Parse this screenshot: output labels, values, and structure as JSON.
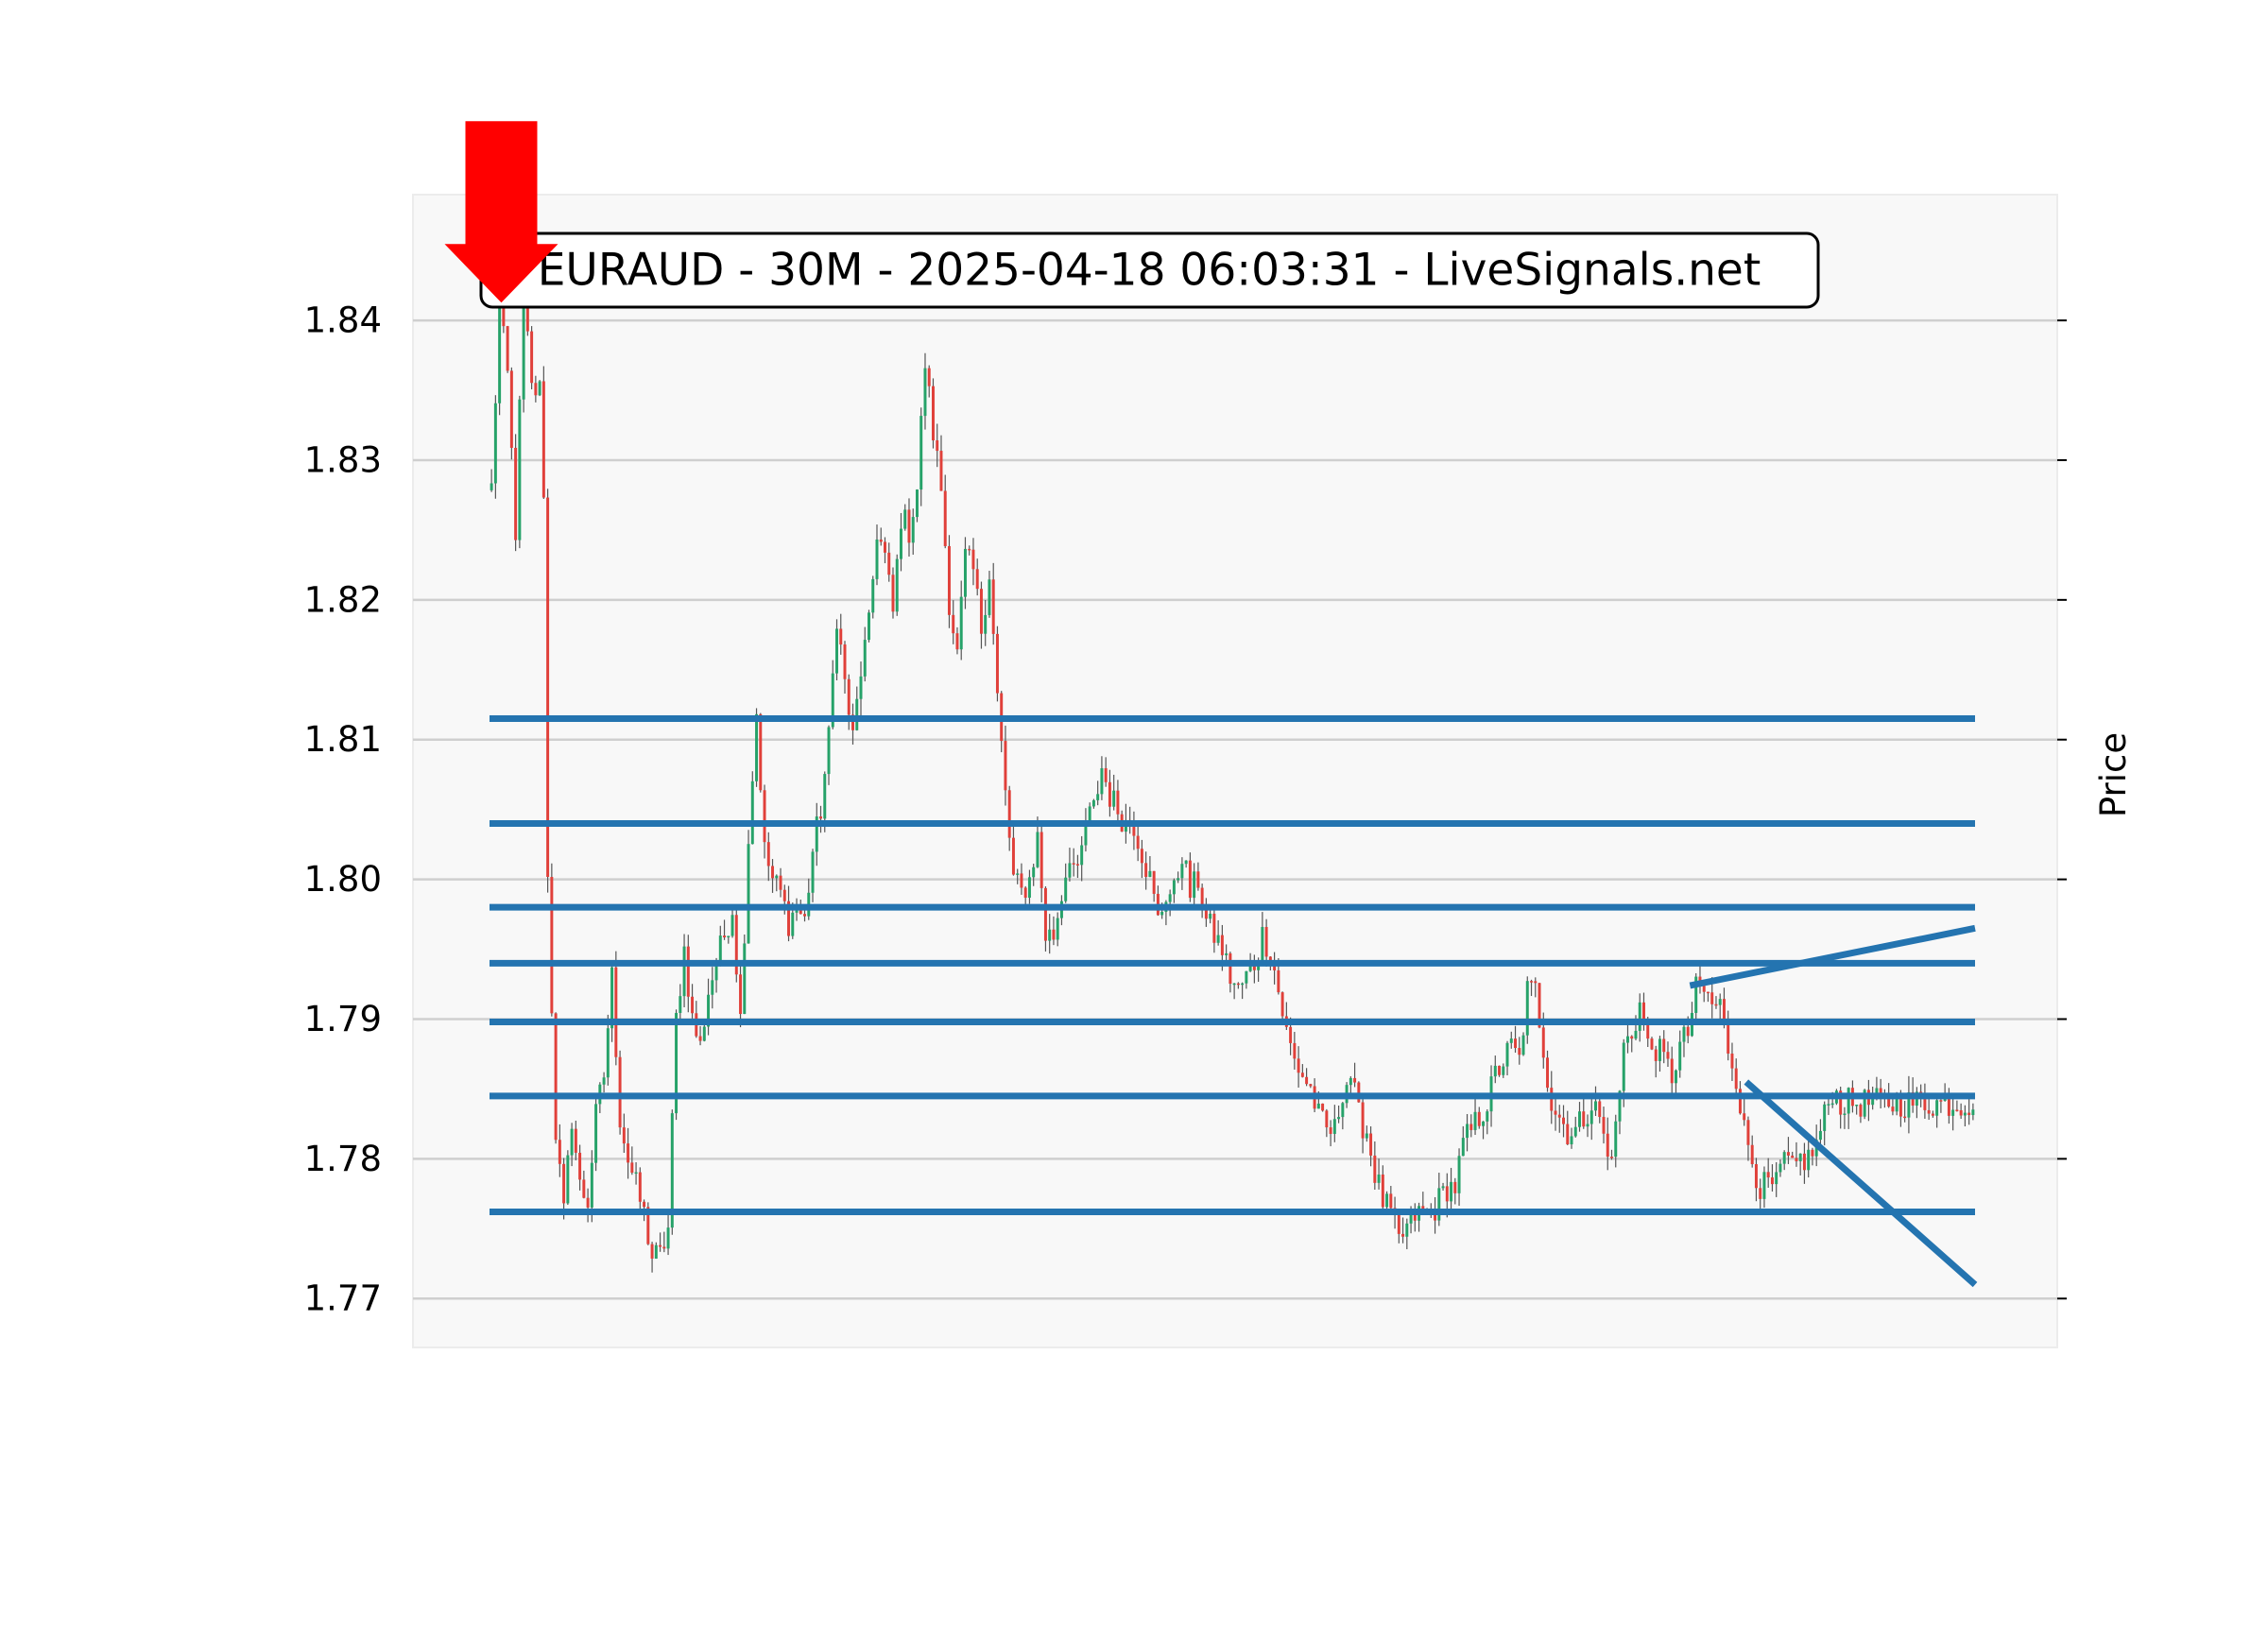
{
  "chart_data": {
    "type": "candlestick",
    "title": "EURAUD - 30M - 2025-04-18 06:03:31 - LiveSignals.net",
    "ylabel": "Price",
    "xlabel": "",
    "ylim": [
      1.7665,
      1.849
    ],
    "yticks": [
      "1.77",
      "1.78",
      "1.79",
      "1.80",
      "1.81",
      "1.82",
      "1.83",
      "1.84"
    ],
    "ytick_values": [
      1.77,
      1.78,
      1.79,
      1.8,
      1.81,
      1.82,
      1.83,
      1.84
    ],
    "grid": true,
    "bar_count": 370,
    "anchors": [
      [
        0,
        1.828
      ],
      [
        2,
        1.841
      ],
      [
        4,
        1.836
      ],
      [
        6,
        1.825
      ],
      [
        8,
        1.842
      ],
      [
        10,
        1.835
      ],
      [
        12,
        1.835
      ],
      [
        13,
        1.828
      ],
      [
        14,
        1.8
      ],
      [
        16,
        1.782
      ],
      [
        18,
        1.776
      ],
      [
        20,
        1.783
      ],
      [
        22,
        1.778
      ],
      [
        24,
        1.777
      ],
      [
        26,
        1.783
      ],
      [
        28,
        1.786
      ],
      [
        30,
        1.793
      ],
      [
        32,
        1.783
      ],
      [
        34,
        1.78
      ],
      [
        36,
        1.778
      ],
      [
        38,
        1.776
      ],
      [
        40,
        1.773
      ],
      [
        42,
        1.773
      ],
      [
        44,
        1.775
      ],
      [
        46,
        1.79
      ],
      [
        48,
        1.795
      ],
      [
        50,
        1.79
      ],
      [
        52,
        1.788
      ],
      [
        54,
        1.792
      ],
      [
        56,
        1.794
      ],
      [
        58,
        1.796
      ],
      [
        60,
        1.798
      ],
      [
        62,
        1.79
      ],
      [
        64,
        1.803
      ],
      [
        66,
        1.812
      ],
      [
        68,
        1.802
      ],
      [
        70,
        1.8
      ],
      [
        72,
        1.799
      ],
      [
        74,
        1.797
      ],
      [
        76,
        1.798
      ],
      [
        78,
        1.797
      ],
      [
        80,
        1.802
      ],
      [
        82,
        1.805
      ],
      [
        84,
        1.81
      ],
      [
        86,
        1.819
      ],
      [
        88,
        1.814
      ],
      [
        90,
        1.81
      ],
      [
        92,
        1.815
      ],
      [
        94,
        1.818
      ],
      [
        96,
        1.825
      ],
      [
        98,
        1.823
      ],
      [
        100,
        1.819
      ],
      [
        102,
        1.826
      ],
      [
        104,
        1.825
      ],
      [
        106,
        1.828
      ],
      [
        108,
        1.837
      ],
      [
        110,
        1.832
      ],
      [
        112,
        1.828
      ],
      [
        114,
        1.82
      ],
      [
        116,
        1.816
      ],
      [
        118,
        1.823
      ],
      [
        120,
        1.822
      ],
      [
        122,
        1.818
      ],
      [
        124,
        1.822
      ],
      [
        126,
        1.813
      ],
      [
        128,
        1.806
      ],
      [
        130,
        1.8
      ],
      [
        132,
        1.799
      ],
      [
        134,
        1.8
      ],
      [
        136,
        1.803
      ],
      [
        138,
        1.796
      ],
      [
        140,
        1.796
      ],
      [
        142,
        1.799
      ],
      [
        144,
        1.802
      ],
      [
        146,
        1.8
      ],
      [
        148,
        1.804
      ],
      [
        150,
        1.805
      ],
      [
        152,
        1.808
      ],
      [
        154,
        1.806
      ],
      [
        156,
        1.805
      ],
      [
        158,
        1.804
      ],
      [
        160,
        1.804
      ],
      [
        162,
        1.802
      ],
      [
        164,
        1.8
      ],
      [
        166,
        1.797
      ],
      [
        168,
        1.799
      ],
      [
        170,
        1.799
      ],
      [
        172,
        1.802
      ],
      [
        174,
        1.799
      ],
      [
        176,
        1.8
      ],
      [
        178,
        1.797
      ],
      [
        180,
        1.796
      ],
      [
        182,
        1.795
      ],
      [
        184,
        1.793
      ],
      [
        186,
        1.792
      ],
      [
        188,
        1.793
      ],
      [
        190,
        1.794
      ],
      [
        192,
        1.796
      ],
      [
        194,
        1.795
      ],
      [
        196,
        1.792
      ],
      [
        198,
        1.789
      ],
      [
        200,
        1.787
      ],
      [
        202,
        1.786
      ],
      [
        204,
        1.785
      ],
      [
        206,
        1.783
      ],
      [
        208,
        1.782
      ],
      [
        210,
        1.782
      ],
      [
        212,
        1.785
      ],
      [
        214,
        1.786
      ],
      [
        216,
        1.783
      ],
      [
        218,
        1.782
      ],
      [
        220,
        1.779
      ],
      [
        222,
        1.777
      ],
      [
        224,
        1.776
      ],
      [
        226,
        1.774
      ],
      [
        228,
        1.775
      ],
      [
        230,
        1.776
      ],
      [
        232,
        1.776
      ],
      [
        234,
        1.776
      ],
      [
        236,
        1.777
      ],
      [
        238,
        1.778
      ],
      [
        240,
        1.778
      ],
      [
        242,
        1.781
      ],
      [
        244,
        1.782
      ],
      [
        246,
        1.783
      ],
      [
        248,
        1.784
      ],
      [
        250,
        1.786
      ],
      [
        252,
        1.787
      ],
      [
        254,
        1.788
      ],
      [
        256,
        1.787
      ],
      [
        258,
        1.792
      ],
      [
        260,
        1.792
      ],
      [
        262,
        1.788
      ],
      [
        264,
        1.784
      ],
      [
        266,
        1.783
      ],
      [
        268,
        1.782
      ],
      [
        270,
        1.782
      ],
      [
        272,
        1.783
      ],
      [
        274,
        1.784
      ],
      [
        276,
        1.783
      ],
      [
        278,
        1.78
      ],
      [
        280,
        1.782
      ],
      [
        282,
        1.788
      ],
      [
        284,
        1.789
      ],
      [
        286,
        1.791
      ],
      [
        288,
        1.788
      ],
      [
        290,
        1.788
      ],
      [
        292,
        1.787
      ],
      [
        294,
        1.786
      ],
      [
        296,
        1.788
      ],
      [
        298,
        1.789
      ],
      [
        300,
        1.792
      ],
      [
        302,
        1.792
      ],
      [
        304,
        1.791
      ],
      [
        306,
        1.791
      ],
      [
        308,
        1.788
      ],
      [
        310,
        1.786
      ],
      [
        312,
        1.782
      ],
      [
        314,
        1.78
      ],
      [
        316,
        1.778
      ],
      [
        318,
        1.778
      ],
      [
        320,
        1.778
      ],
      [
        322,
        1.78
      ],
      [
        324,
        1.779
      ],
      [
        326,
        1.78
      ],
      [
        328,
        1.78
      ],
      [
        330,
        1.781
      ],
      [
        332,
        1.783
      ],
      [
        334,
        1.785
      ],
      [
        336,
        1.784
      ]
    ],
    "horizontal_levels": [
      1.8115,
      1.804,
      1.798,
      1.794,
      1.7898,
      1.7845,
      1.7762
    ],
    "trend_lines": [
      {
        "name": "upper trend line",
        "from": [
          299,
          1.7924
        ],
        "to": [
          370,
          1.7965
        ]
      },
      {
        "name": "lower trend line",
        "from": [
          313,
          1.7855
        ],
        "to": [
          370,
          1.771
        ]
      }
    ],
    "signal": {
      "type": "sell",
      "bar": 2,
      "price": 1.841
    },
    "colors": {
      "up": "#26a269",
      "down": "#e0403a",
      "wick": "#555555",
      "levels": "#2474b0",
      "arrow": "#ff0000",
      "grid": "#cfcfcf",
      "plot_bg": "#f8f8f8"
    }
  }
}
